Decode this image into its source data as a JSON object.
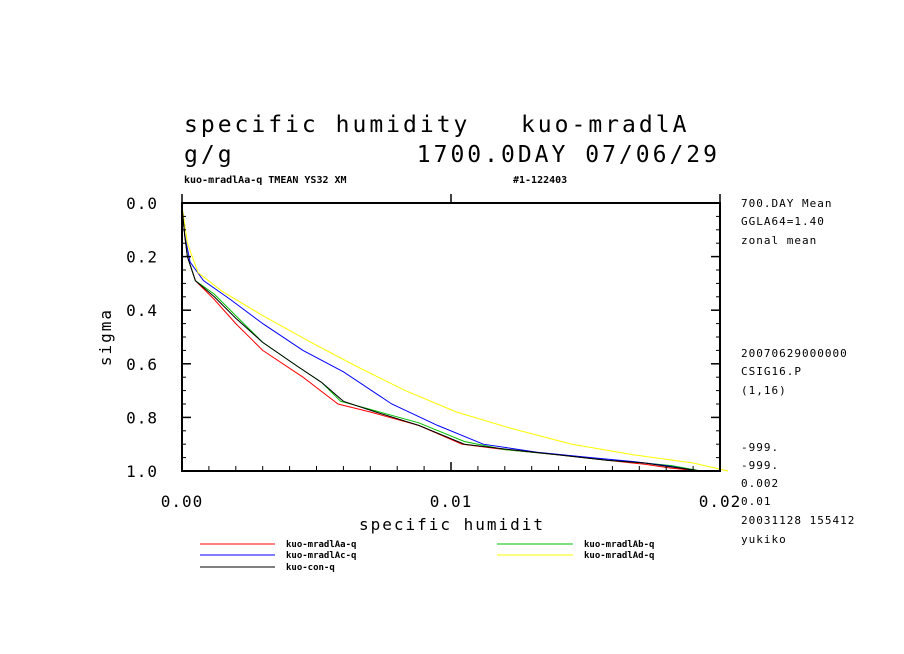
{
  "header": {
    "title_line1": "specific humidity   kuo-mradlA",
    "title_line2_left": "g/g",
    "title_line2_right": "1700.0DAY 07/06/29",
    "subtitle_left": "kuo-mradlAa-q TMEAN YS32 XM",
    "subtitle_right": "#1-122403"
  },
  "side_info": {
    "top": [
      "700.DAY Mean",
      "GGLA64=1.40",
      "zonal mean"
    ],
    "middle": [
      "20070629000000",
      "CSIG16.P",
      "(1,16)"
    ],
    "bottom": [
      "-999.",
      "-999.",
      "0.002",
      "0.01",
      "20031128 155412",
      "yukiko"
    ]
  },
  "chart_data": {
    "type": "line",
    "xlabel": "specific humidit",
    "ylabel": "sigma",
    "xlim": [
      0,
      0.02
    ],
    "ylim": [
      0,
      1
    ],
    "y_inverted": true,
    "x_ticks": [
      "0.00",
      "0.01",
      "0.02"
    ],
    "y_ticks": [
      "0.0",
      "0.2",
      "0.4",
      "0.6",
      "0.8",
      "1.0"
    ],
    "series": [
      {
        "name": "kuo-mradlAa-q",
        "color": "#ff0000",
        "x": [
          0.0,
          0.0001,
          0.0002,
          0.0005,
          0.0012,
          0.002,
          0.003,
          0.0045,
          0.0058,
          0.007,
          0.0088,
          0.0104,
          0.012,
          0.014,
          0.0158,
          0.0172,
          0.0182,
          0.0193
        ],
        "y": [
          0.01,
          0.12,
          0.2,
          0.29,
          0.36,
          0.45,
          0.55,
          0.65,
          0.75,
          0.78,
          0.83,
          0.9,
          0.92,
          0.94,
          0.96,
          0.975,
          0.99,
          1.0
        ]
      },
      {
        "name": "kuo-mradlAb-q",
        "color": "#00c000",
        "x": [
          0.0,
          0.0001,
          0.0002,
          0.0005,
          0.0012,
          0.002,
          0.003,
          0.0043,
          0.0052,
          0.0059,
          0.007,
          0.0088,
          0.0105,
          0.012,
          0.014,
          0.0158,
          0.0172,
          0.0182,
          0.0193
        ],
        "y": [
          0.01,
          0.12,
          0.2,
          0.29,
          0.34,
          0.42,
          0.52,
          0.61,
          0.67,
          0.74,
          0.77,
          0.82,
          0.89,
          0.92,
          0.94,
          0.96,
          0.97,
          0.98,
          1.0
        ]
      },
      {
        "name": "kuo-mradlAc-q",
        "color": "#0000ff",
        "x": [
          0.0,
          0.0001,
          0.0003,
          0.0008,
          0.0018,
          0.003,
          0.0045,
          0.006,
          0.0078,
          0.0095,
          0.0112,
          0.0132,
          0.0152,
          0.0168,
          0.018,
          0.0192
        ],
        "y": [
          0.01,
          0.12,
          0.22,
          0.29,
          0.36,
          0.45,
          0.55,
          0.63,
          0.75,
          0.83,
          0.9,
          0.93,
          0.95,
          0.965,
          0.98,
          1.0
        ]
      },
      {
        "name": "kuo-mradlAd-q",
        "color": "#ffff00",
        "x": [
          0.0,
          0.0002,
          0.0006,
          0.0015,
          0.003,
          0.0048,
          0.0065,
          0.0083,
          0.0102,
          0.0122,
          0.0145,
          0.0168,
          0.019,
          0.0203
        ],
        "y": [
          0.01,
          0.15,
          0.26,
          0.33,
          0.42,
          0.52,
          0.61,
          0.7,
          0.78,
          0.84,
          0.9,
          0.94,
          0.97,
          1.0
        ]
      },
      {
        "name": "kuo-con-q",
        "color": "#000000",
        "x": [
          0.0,
          0.0001,
          0.0002,
          0.0005,
          0.0012,
          0.002,
          0.003,
          0.0043,
          0.0052,
          0.006,
          0.0072,
          0.0088,
          0.0105,
          0.0122,
          0.014,
          0.0158,
          0.0172,
          0.0182,
          0.0193
        ],
        "y": [
          0.01,
          0.12,
          0.2,
          0.29,
          0.35,
          0.43,
          0.52,
          0.61,
          0.67,
          0.74,
          0.78,
          0.83,
          0.9,
          0.92,
          0.94,
          0.96,
          0.97,
          0.985,
          1.0
        ]
      }
    ],
    "legend_placement": "bottom"
  }
}
